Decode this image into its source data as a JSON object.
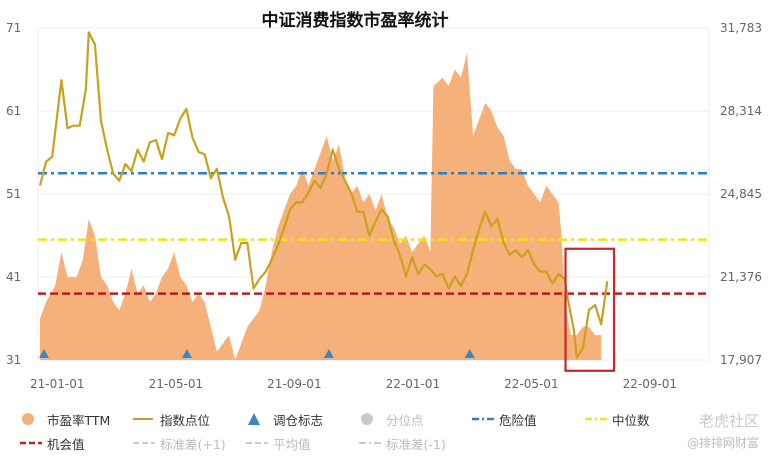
{
  "chart_data": {
    "type": "area+line",
    "title": "中证消费指数市盈率统计",
    "left_axis": {
      "ticks": [
        "71",
        "61",
        "51",
        "41",
        "31"
      ],
      "range": [
        31,
        71
      ]
    },
    "right_axis": {
      "ticks": [
        "31,783",
        "28,314",
        "24,845",
        "21,376",
        "17,907"
      ],
      "range": [
        17907,
        31783
      ]
    },
    "x_ticks": [
      "21-01-01",
      "21-05-01",
      "21-09-01",
      "22-01-01",
      "22-05-01",
      "22-09-01"
    ],
    "x_tick_positions": [
      0,
      0.1825,
      0.3648,
      0.5472,
      0.7294,
      0.9117
    ],
    "pe_series_name": "市盈率TTM",
    "pe_values": [
      [
        0,
        36
      ],
      [
        0.01,
        38
      ],
      [
        0.025,
        40
      ],
      [
        0.035,
        44
      ],
      [
        0.045,
        41
      ],
      [
        0.06,
        41
      ],
      [
        0.07,
        43
      ],
      [
        0.08,
        48
      ],
      [
        0.09,
        46
      ],
      [
        0.1,
        41
      ],
      [
        0.11,
        40
      ],
      [
        0.12,
        38
      ],
      [
        0.13,
        37
      ],
      [
        0.14,
        39
      ],
      [
        0.15,
        42
      ],
      [
        0.16,
        39
      ],
      [
        0.17,
        40
      ],
      [
        0.18,
        38
      ],
      [
        0.19,
        39
      ],
      [
        0.2,
        41
      ],
      [
        0.21,
        42
      ],
      [
        0.22,
        44
      ],
      [
        0.23,
        41
      ],
      [
        0.24,
        40
      ],
      [
        0.25,
        38
      ],
      [
        0.26,
        39
      ],
      [
        0.27,
        38
      ],
      [
        0.28,
        35
      ],
      [
        0.29,
        32
      ],
      [
        0.3,
        33
      ],
      [
        0.31,
        34
      ],
      [
        0.32,
        31
      ],
      [
        0.33,
        33
      ],
      [
        0.34,
        35
      ],
      [
        0.35,
        36
      ],
      [
        0.36,
        37
      ],
      [
        0.37,
        40
      ],
      [
        0.38,
        44
      ],
      [
        0.39,
        47
      ],
      [
        0.4,
        49
      ],
      [
        0.41,
        51
      ],
      [
        0.42,
        52
      ],
      [
        0.43,
        54
      ],
      [
        0.44,
        52
      ],
      [
        0.45,
        54
      ],
      [
        0.46,
        56
      ],
      [
        0.47,
        58
      ],
      [
        0.48,
        55
      ],
      [
        0.49,
        57
      ],
      [
        0.5,
        53
      ],
      [
        0.51,
        51
      ],
      [
        0.52,
        52
      ],
      [
        0.53,
        50
      ],
      [
        0.54,
        51
      ],
      [
        0.55,
        49
      ],
      [
        0.56,
        51
      ],
      [
        0.57,
        48
      ],
      [
        0.58,
        47
      ],
      [
        0.59,
        45
      ],
      [
        0.6,
        46
      ],
      [
        0.61,
        44
      ],
      [
        0.62,
        45
      ],
      [
        0.63,
        46
      ],
      [
        0.64,
        44
      ],
      [
        0.645,
        64
      ],
      [
        0.66,
        65
      ],
      [
        0.67,
        64
      ],
      [
        0.68,
        66
      ],
      [
        0.69,
        65
      ],
      [
        0.7,
        68
      ],
      [
        0.71,
        58
      ],
      [
        0.72,
        60
      ],
      [
        0.73,
        62
      ],
      [
        0.74,
        61
      ],
      [
        0.75,
        59
      ],
      [
        0.76,
        58
      ],
      [
        0.77,
        55
      ],
      [
        0.78,
        54
      ],
      [
        0.79,
        54
      ],
      [
        0.8,
        52
      ],
      [
        0.81,
        51
      ],
      [
        0.82,
        50
      ],
      [
        0.83,
        52
      ],
      [
        0.84,
        51
      ],
      [
        0.85,
        50
      ],
      [
        0.855,
        46
      ],
      [
        0.86,
        38
      ],
      [
        0.87,
        34
      ],
      [
        0.88,
        34
      ],
      [
        0.89,
        35
      ],
      [
        0.9,
        35
      ],
      [
        0.91,
        34
      ],
      [
        0.92,
        34
      ]
    ],
    "index_series_name": "指数点位",
    "index_values": [
      [
        0,
        25200
      ],
      [
        0.01,
        26200
      ],
      [
        0.02,
        26400
      ],
      [
        0.035,
        29600
      ],
      [
        0.045,
        27600
      ],
      [
        0.055,
        27700
      ],
      [
        0.065,
        27700
      ],
      [
        0.075,
        29200
      ],
      [
        0.08,
        31600
      ],
      [
        0.09,
        31100
      ],
      [
        0.1,
        27900
      ],
      [
        0.11,
        26700
      ],
      [
        0.12,
        25700
      ],
      [
        0.13,
        25400
      ],
      [
        0.14,
        26100
      ],
      [
        0.15,
        25800
      ],
      [
        0.16,
        26700
      ],
      [
        0.17,
        26200
      ],
      [
        0.18,
        27000
      ],
      [
        0.19,
        27100
      ],
      [
        0.2,
        26300
      ],
      [
        0.21,
        27400
      ],
      [
        0.22,
        27300
      ],
      [
        0.23,
        28000
      ],
      [
        0.24,
        28400
      ],
      [
        0.25,
        27200
      ],
      [
        0.26,
        26600
      ],
      [
        0.27,
        26500
      ],
      [
        0.28,
        25500
      ],
      [
        0.29,
        25900
      ],
      [
        0.3,
        24700
      ],
      [
        0.31,
        23900
      ],
      [
        0.32,
        22100
      ],
      [
        0.33,
        22800
      ],
      [
        0.34,
        22800
      ],
      [
        0.35,
        20900
      ],
      [
        0.36,
        21300
      ],
      [
        0.37,
        21600
      ],
      [
        0.38,
        22100
      ],
      [
        0.39,
        22700
      ],
      [
        0.4,
        23400
      ],
      [
        0.41,
        24200
      ],
      [
        0.42,
        24500
      ],
      [
        0.43,
        24500
      ],
      [
        0.44,
        24900
      ],
      [
        0.45,
        25400
      ],
      [
        0.46,
        25100
      ],
      [
        0.47,
        25700
      ],
      [
        0.48,
        26700
      ],
      [
        0.49,
        25900
      ],
      [
        0.5,
        25400
      ],
      [
        0.51,
        24900
      ],
      [
        0.52,
        24100
      ],
      [
        0.53,
        24100
      ],
      [
        0.54,
        23100
      ],
      [
        0.55,
        23700
      ],
      [
        0.56,
        24200
      ],
      [
        0.57,
        23900
      ],
      [
        0.58,
        22900
      ],
      [
        0.59,
        22300
      ],
      [
        0.6,
        21400
      ],
      [
        0.61,
        22200
      ],
      [
        0.62,
        21500
      ],
      [
        0.63,
        21900
      ],
      [
        0.64,
        21700
      ],
      [
        0.65,
        21400
      ],
      [
        0.66,
        21500
      ],
      [
        0.67,
        20900
      ],
      [
        0.68,
        21400
      ],
      [
        0.69,
        21000
      ],
      [
        0.7,
        21500
      ],
      [
        0.71,
        22500
      ],
      [
        0.72,
        23400
      ],
      [
        0.73,
        24100
      ],
      [
        0.74,
        23500
      ],
      [
        0.75,
        23800
      ],
      [
        0.76,
        22800
      ],
      [
        0.77,
        22300
      ],
      [
        0.78,
        22500
      ],
      [
        0.79,
        22200
      ],
      [
        0.8,
        22500
      ],
      [
        0.81,
        21900
      ],
      [
        0.82,
        21600
      ],
      [
        0.83,
        21600
      ],
      [
        0.84,
        21100
      ],
      [
        0.85,
        21500
      ],
      [
        0.86,
        21300
      ],
      [
        0.865,
        20500
      ],
      [
        0.875,
        19200
      ],
      [
        0.88,
        18000
      ],
      [
        0.89,
        18400
      ],
      [
        0.9,
        20000
      ],
      [
        0.91,
        20200
      ],
      [
        0.92,
        19400
      ],
      [
        0.93,
        21200
      ]
    ],
    "danger_value": 53.5,
    "median_value": 45.5,
    "opportunity_value": 39,
    "rebalance_marker_positions": [
      0,
      0.2344,
      0.467,
      0.698
    ],
    "highlight_box": {
      "x_from": 0.8615,
      "x_to": 0.941,
      "y_top_value": 44.4,
      "y_bottom_value": 29.7
    },
    "legend": [
      [
        "市盈率TTM",
        "指数点位",
        "调仓标志",
        "分位点",
        "危险值",
        "中位数"
      ],
      [
        "机会值",
        "标准差(+1)",
        "平均值",
        "标准差(-1)"
      ]
    ],
    "colors": {
      "pe_fill": "#f6b07a",
      "index_line": "#c8a21d",
      "danger": "#2e7fc1",
      "median": "#f3e21a",
      "opportunity": "#b62121",
      "marker": "#3b86c6",
      "highlight": "#c8262a",
      "grid": "#eeeeee",
      "legend_muted": "#bbbbbb"
    }
  },
  "watermark": {
    "line1": "老虎社区",
    "line2": "@排排网财富"
  }
}
